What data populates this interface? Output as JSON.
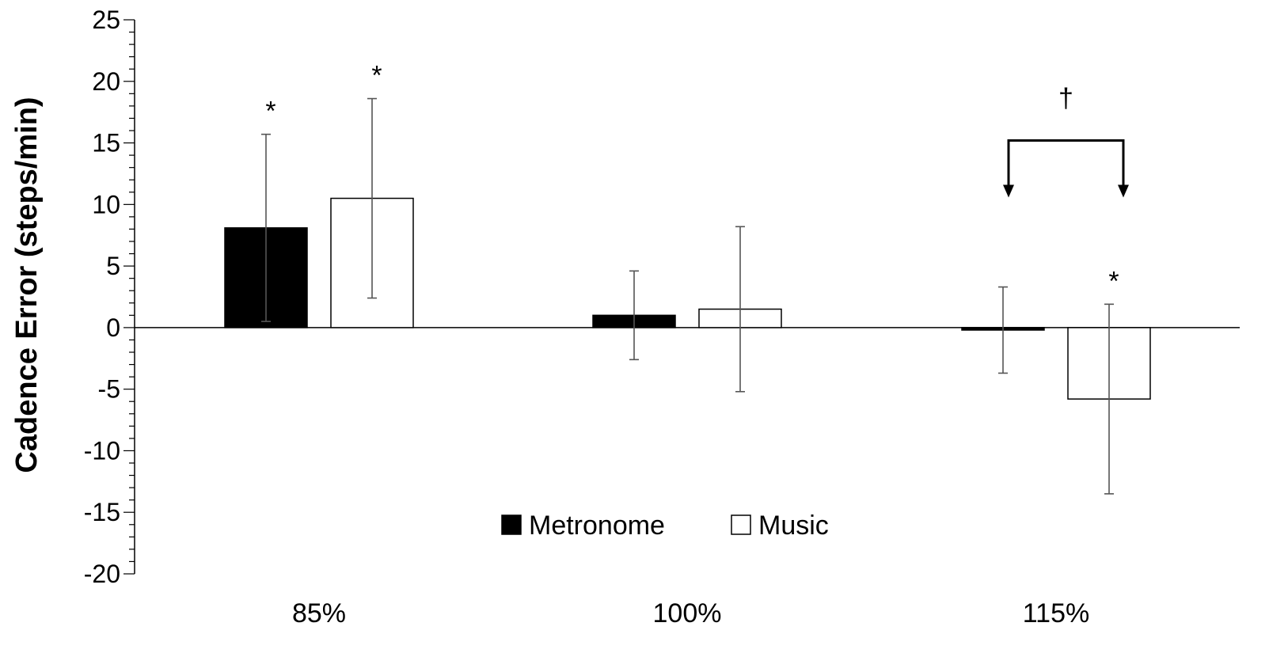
{
  "chart_data": {
    "type": "bar",
    "title": "",
    "xlabel": "",
    "ylabel": "Cadence Error (steps/min)",
    "ylim": [
      -20,
      25
    ],
    "ytick_step": 5,
    "yticks": [
      "25",
      "20",
      "15",
      "10",
      "5",
      "0",
      "-5",
      "-10",
      "-15",
      "-20"
    ],
    "categories": [
      "85%",
      "100%",
      "115%"
    ],
    "legend_position": "bottom-center",
    "grid": false,
    "series": [
      {
        "name": "Metronome",
        "color": "#000000",
        "values": [
          8.1,
          1.0,
          -0.2
        ],
        "errors": [
          7.6,
          3.6,
          3.5
        ]
      },
      {
        "name": "Music",
        "color": "#ffffff",
        "values": [
          10.5,
          1.5,
          -5.8
        ],
        "errors": [
          8.1,
          6.7,
          7.7
        ]
      }
    ],
    "annotations": [
      {
        "text": "*",
        "category": 0,
        "series": 0
      },
      {
        "text": "*",
        "category": 0,
        "series": 1
      },
      {
        "text": "*",
        "category": 2,
        "series": 1
      },
      {
        "text": "†",
        "category": 2,
        "type": "bracket",
        "y": 15.2
      }
    ]
  }
}
